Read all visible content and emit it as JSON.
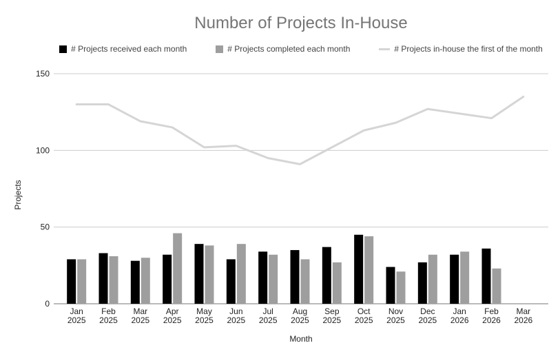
{
  "title": "Number of Projects In-House",
  "legend": {
    "items": [
      {
        "label": "# Projects received each month",
        "color": "#000000",
        "swatch": "square"
      },
      {
        "label": "# Projects completed each month",
        "color": "#9e9e9e",
        "swatch": "square"
      },
      {
        "label": "# Projects in-house the first of the month",
        "color": "#d5d5d5",
        "swatch": "line"
      }
    ]
  },
  "chart_data": {
    "type": "bar+line combo",
    "title": "Number of Projects In-House",
    "xlabel": "Month",
    "ylabel": "Projects",
    "ylim": [
      0,
      150
    ],
    "yticks": [
      0,
      50,
      100,
      150
    ],
    "grid": true,
    "legend_position": "top",
    "categories": [
      [
        "Jan",
        "2025"
      ],
      [
        "Feb",
        "2025"
      ],
      [
        "Mar",
        "2025"
      ],
      [
        "Apr",
        "2025"
      ],
      [
        "May",
        "2025"
      ],
      [
        "Jun",
        "2025"
      ],
      [
        "Jul",
        "2025"
      ],
      [
        "Aug",
        "2025"
      ],
      [
        "Sep",
        "2025"
      ],
      [
        "Oct",
        "2025"
      ],
      [
        "Nov",
        "2025"
      ],
      [
        "Dec",
        "2025"
      ],
      [
        "Jan",
        "2026"
      ],
      [
        "Feb",
        "2026"
      ],
      [
        "Mar",
        "2026"
      ]
    ],
    "series": [
      {
        "name": "# Projects received each month",
        "type": "bar",
        "color": "#000000",
        "values": [
          29,
          33,
          28,
          32,
          39,
          29,
          34,
          35,
          37,
          45,
          24,
          27,
          32,
          36,
          null
        ]
      },
      {
        "name": "# Projects completed each month",
        "type": "bar",
        "color": "#9e9e9e",
        "values": [
          29,
          31,
          30,
          46,
          38,
          39,
          32,
          29,
          27,
          44,
          21,
          32,
          34,
          23,
          null
        ]
      },
      {
        "name": "# Projects in-house the first of the month",
        "type": "line",
        "color": "#d5d5d5",
        "values": [
          130,
          130,
          119,
          115,
          102,
          103,
          95,
          91,
          102,
          113,
          118,
          127,
          124,
          121,
          135
        ]
      }
    ]
  },
  "style": {
    "gridline_color": "#cccccc",
    "axis_line_color": "#757575",
    "tick_label_color": "#222222",
    "axis_title_color": "#222222",
    "title_color": "#757575"
  }
}
